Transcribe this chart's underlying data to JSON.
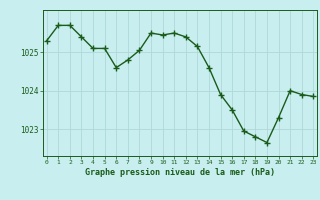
{
  "x": [
    0,
    1,
    2,
    3,
    4,
    5,
    6,
    7,
    8,
    9,
    10,
    11,
    12,
    13,
    14,
    15,
    16,
    17,
    18,
    19,
    20,
    21,
    22,
    23
  ],
  "y": [
    1025.3,
    1025.7,
    1025.7,
    1025.4,
    1025.1,
    1025.1,
    1024.6,
    1024.8,
    1025.05,
    1025.5,
    1025.45,
    1025.5,
    1025.4,
    1025.15,
    1024.6,
    1023.9,
    1023.5,
    1022.95,
    1022.8,
    1022.65,
    1023.3,
    1024.0,
    1023.9,
    1023.85
  ],
  "line_color": "#1a5c1a",
  "marker_color": "#1a5c1a",
  "bg_color": "#c8eef0",
  "grid_color": "#b0d8d8",
  "xlabel": "Graphe pression niveau de la mer (hPa)",
  "xlabel_color": "#1a5c1a",
  "ylabel_ticks": [
    1023,
    1024,
    1025
  ],
  "ylim": [
    1022.3,
    1026.1
  ],
  "xlim": [
    -0.3,
    23.3
  ],
  "xticks": [
    0,
    1,
    2,
    3,
    4,
    5,
    6,
    7,
    8,
    9,
    10,
    11,
    12,
    13,
    14,
    15,
    16,
    17,
    18,
    19,
    20,
    21,
    22,
    23
  ],
  "tick_color": "#1a5c1a",
  "line_width": 1.0,
  "marker_size": 4.0
}
